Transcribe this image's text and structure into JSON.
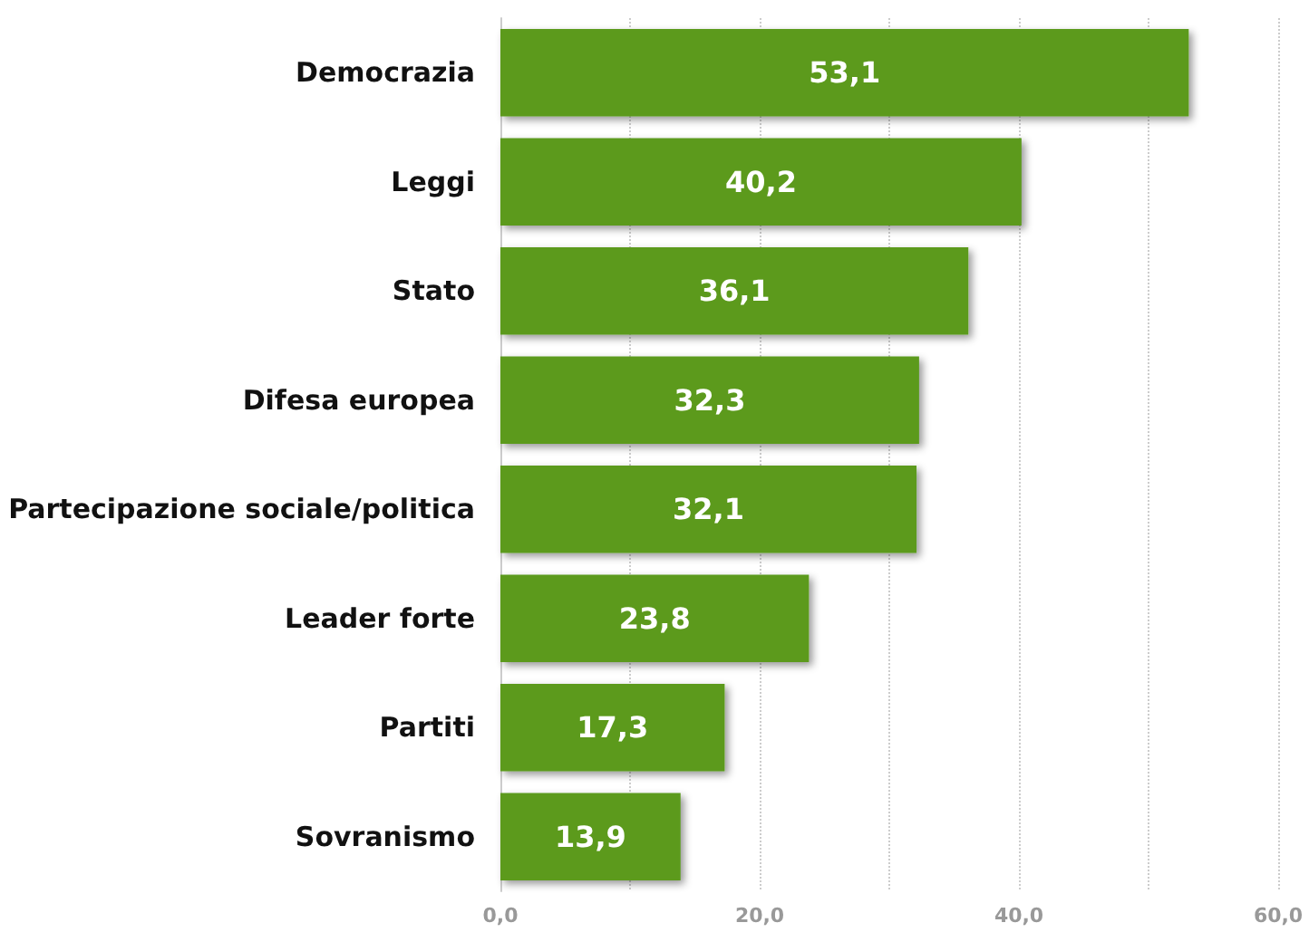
{
  "chart_data": {
    "type": "bar",
    "orientation": "horizontal",
    "categories": [
      "Democrazia",
      "Leggi",
      "Stato",
      "Difesa europea",
      "Partecipazione sociale/politica",
      "Leader forte",
      "Partiti",
      "Sovranismo"
    ],
    "values": [
      53.1,
      40.2,
      36.1,
      32.3,
      32.1,
      23.8,
      17.3,
      13.9
    ],
    "value_labels": [
      "53,1",
      "40,2",
      "36,1",
      "32,3",
      "32,1",
      "23,8",
      "17,3",
      "13,9"
    ],
    "color": "#5b9a1f",
    "xlim": [
      0,
      60
    ],
    "xticks": [
      {
        "value": 0,
        "label": "0,0"
      },
      {
        "value": 20,
        "label": "20,0"
      },
      {
        "value": 40,
        "label": "40,0"
      },
      {
        "value": 60,
        "label": "60,0"
      }
    ],
    "grid": "x"
  }
}
